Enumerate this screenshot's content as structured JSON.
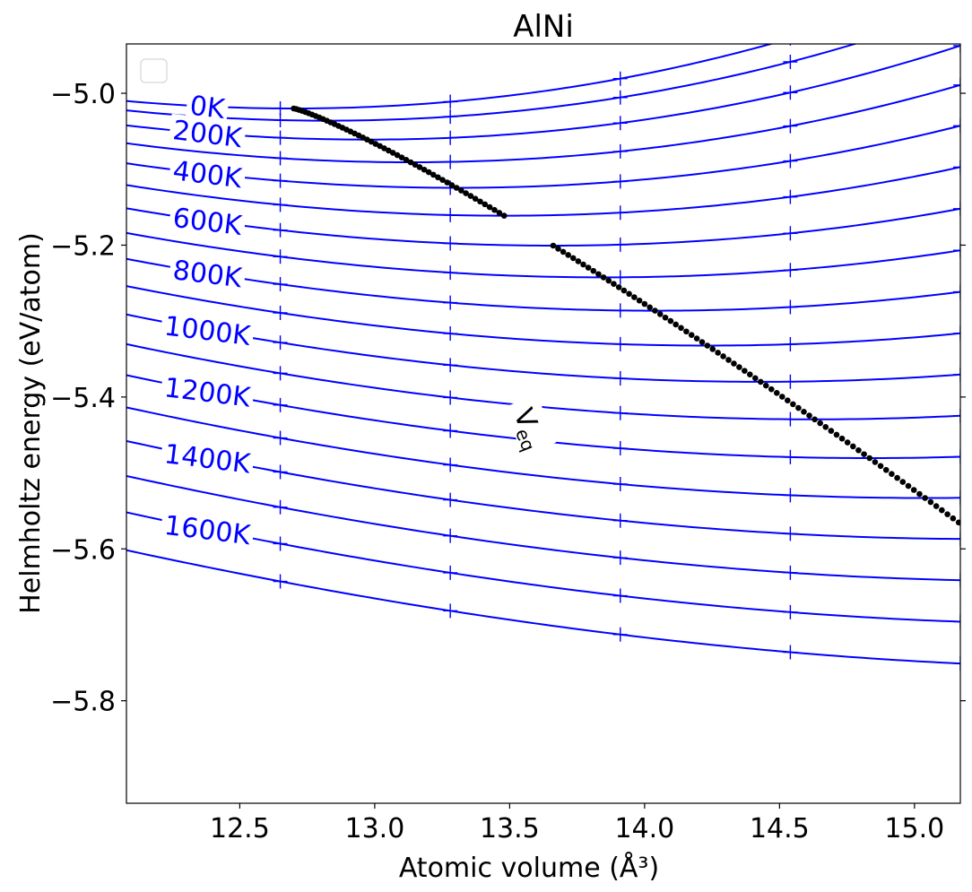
{
  "chart_data": {
    "type": "line",
    "title": "AlNi",
    "xlabel": "Atomic volume",
    "xlabel_unit": "(Å³)",
    "ylabel": "Helmholtz energy (eV/atom)",
    "xlim": [
      12.08,
      15.17
    ],
    "ylim": [
      -5.935,
      -4.935
    ],
    "xticks": [
      12.5,
      13.0,
      13.5,
      14.0,
      14.5,
      15.0
    ],
    "xtick_labels": [
      "12.5",
      "13.0",
      "13.5",
      "14.0",
      "14.5",
      "15.0"
    ],
    "yticks": [
      -5.0,
      -5.2,
      -5.4,
      -5.6,
      -5.8
    ],
    "ytick_labels": [
      "−5.0",
      "−5.2",
      "−5.4",
      "−5.6",
      "−5.8"
    ],
    "grid": false,
    "legend": "top-left (empty)",
    "colors": {
      "curves": "#0000ff",
      "points": "#0000ff",
      "veq": "#000000"
    },
    "isotherm_params": {
      "B": 0.33,
      "Vcoef": 0.027,
      "Vref": 12.7,
      "Vamp": 1.73,
      "Vpow": 1.15,
      "Fcoef": -0.36,
      "Fpow": 1.35
    },
    "isotherm_temps": [
      0,
      100,
      200,
      300,
      400,
      500,
      600,
      700,
      800,
      900,
      1000,
      1100,
      1200,
      1300,
      1400,
      1500,
      1600,
      1700
    ],
    "labels": [
      {
        "text": "0K",
        "T": 0
      },
      {
        "text": "200K",
        "T": 200
      },
      {
        "text": "400K",
        "T": 400
      },
      {
        "text": "600K",
        "T": 600
      },
      {
        "text": "800K",
        "T": 800
      },
      {
        "text": "1000K",
        "T": 1000
      },
      {
        "text": "1200K",
        "T": 1200
      },
      {
        "text": "1400K",
        "T": 1400
      },
      {
        "text": "1600K",
        "T": 1600
      }
    ],
    "sample_volumes": [
      12.65,
      13.28,
      13.91,
      14.54,
      15.17
    ],
    "sample_temps": [
      0,
      100,
      200,
      300,
      400,
      500,
      600,
      700,
      800,
      900,
      1000,
      1100,
      1200,
      1300,
      1400,
      1500,
      1600,
      1700
    ],
    "veq": {
      "label": "V",
      "label_sub": "eq",
      "temps_start": 0,
      "temps_end": 1700,
      "temps_step": 10
    }
  }
}
